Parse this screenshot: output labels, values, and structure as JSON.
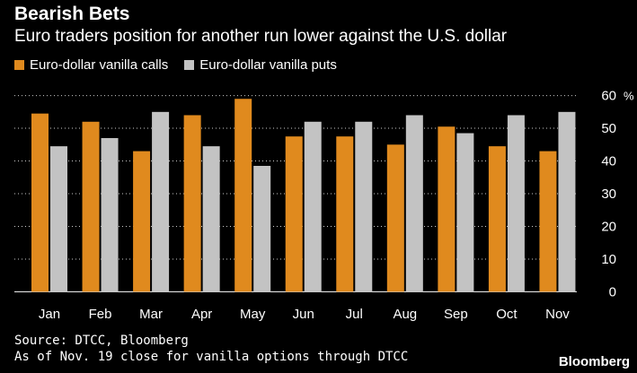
{
  "header": {
    "title": "Bearish Bets",
    "subtitle": "Euro traders position for another run lower against the U.S. dollar"
  },
  "legend": {
    "calls_label": "Euro-dollar vanilla calls",
    "puts_label": "Euro-dollar vanilla puts"
  },
  "colors": {
    "calls": "#e08a1e",
    "puts": "#c3c3c3",
    "grid": "#ffffff",
    "background": "#000000"
  },
  "chart_data": {
    "type": "bar",
    "title": "Bearish Bets",
    "subtitle": "Euro traders position for another run lower against the U.S. dollar",
    "categories": [
      "Jan",
      "Feb",
      "Mar",
      "Apr",
      "May",
      "Jun",
      "Jul",
      "Aug",
      "Sep",
      "Oct",
      "Nov"
    ],
    "series": [
      {
        "name": "Euro-dollar vanilla calls",
        "values": [
          54.5,
          52,
          43,
          54,
          59,
          47.5,
          47.5,
          45,
          50.5,
          44.5,
          43
        ]
      },
      {
        "name": "Euro-dollar vanilla puts",
        "values": [
          44.5,
          47,
          55,
          44.5,
          38.5,
          52,
          52,
          54,
          48.5,
          54,
          55
        ]
      }
    ],
    "y_ticks": [
      "60",
      "50",
      "40",
      "30",
      "20",
      "10",
      "0"
    ],
    "y_unit": "%",
    "ylim": [
      -4,
      64
    ],
    "xlabel": "",
    "ylabel": "%",
    "grid": true,
    "legend_position": "top-left"
  },
  "footer": {
    "source": "Source: DTCC, Bloomberg",
    "note": "As of Nov. 19 close for vanilla options through DTCC",
    "brand": "Bloomberg"
  }
}
